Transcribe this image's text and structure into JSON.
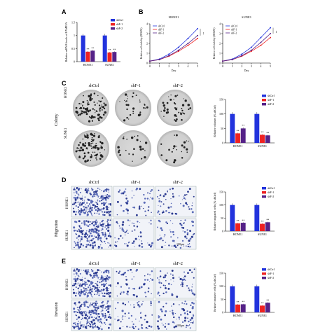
{
  "panels": {
    "A": "A",
    "B": "B",
    "C": "C",
    "D": "D",
    "E": "E"
  },
  "groups": [
    "shCtrl",
    "shF-1",
    "shF-2"
  ],
  "cell_lines": [
    "HONE1",
    "SUNE1"
  ],
  "colors": {
    "shCtrl": "#2233dd",
    "shF-1": "#ee2222",
    "shF-2": "#552288"
  },
  "significance": "**",
  "side_labels": {
    "colony": "Colony",
    "migration": "Migration",
    "invasion": "Invasion"
  },
  "scale_bar": "100μm",
  "chart_data": [
    {
      "id": "A",
      "type": "bar",
      "ylabel": "Relative mRNA levels of FAM83A",
      "categories": [
        "HONE1",
        "SUNE1"
      ],
      "ylim": [
        0,
        1.5
      ],
      "yticks": [
        0.0,
        0.5,
        1.0,
        1.5
      ],
      "series": [
        {
          "name": "shCtrl",
          "values": [
            1.0,
            1.0
          ]
        },
        {
          "name": "shF-1",
          "values": [
            0.38,
            0.35
          ]
        },
        {
          "name": "shF-2",
          "values": [
            0.42,
            0.37
          ]
        }
      ]
    },
    {
      "id": "B1",
      "type": "line",
      "title": "HONE1",
      "xlabel": "Day",
      "ylabel": "Relative cell viability (OD450)",
      "x": [
        0,
        1,
        2,
        3,
        4,
        5
      ],
      "xlim": [
        0,
        5
      ],
      "ylim": [
        0,
        4
      ],
      "yticks": [
        0,
        1,
        2,
        3,
        4
      ],
      "series": [
        {
          "name": "shCtrl",
          "values": [
            0.2,
            0.4,
            0.9,
            1.6,
            2.5,
            3.5
          ]
        },
        {
          "name": "shF-1",
          "values": [
            0.2,
            0.35,
            0.7,
            1.2,
            1.8,
            2.5
          ]
        },
        {
          "name": "shF-2",
          "values": [
            0.2,
            0.35,
            0.75,
            1.3,
            2.0,
            2.8
          ]
        }
      ]
    },
    {
      "id": "B2",
      "type": "line",
      "title": "SUNE1",
      "xlabel": "Day",
      "ylabel": "Relative cell viability (OD450)",
      "x": [
        0,
        1,
        2,
        3,
        4,
        5
      ],
      "xlim": [
        0,
        5
      ],
      "ylim": [
        0,
        4
      ],
      "yticks": [
        0,
        1,
        2,
        3,
        4
      ],
      "series": [
        {
          "name": "shCtrl",
          "values": [
            0.2,
            0.4,
            0.9,
            1.6,
            2.6,
            3.6
          ]
        },
        {
          "name": "shF-1",
          "values": [
            0.2,
            0.35,
            0.7,
            1.2,
            1.8,
            2.6
          ]
        },
        {
          "name": "shF-2",
          "values": [
            0.2,
            0.35,
            0.75,
            1.3,
            2.1,
            3.0
          ]
        }
      ]
    },
    {
      "id": "C",
      "type": "bar",
      "ylabel": "Relative colonies (% shCtrl)",
      "categories": [
        "HONE1",
        "SUNE1"
      ],
      "ylim": [
        0,
        150
      ],
      "yticks": [
        0,
        50,
        100,
        150
      ],
      "series": [
        {
          "name": "shCtrl",
          "values": [
            100,
            100
          ]
        },
        {
          "name": "shF-1",
          "values": [
            33,
            28
          ]
        },
        {
          "name": "shF-2",
          "values": [
            50,
            26
          ]
        }
      ]
    },
    {
      "id": "D",
      "type": "bar",
      "ylabel": "Relative migrated cells (% shCtrl)",
      "categories": [
        "HONE1",
        "SUNE1"
      ],
      "ylim": [
        0,
        150
      ],
      "yticks": [
        0,
        50,
        100,
        150
      ],
      "series": [
        {
          "name": "shCtrl",
          "values": [
            100,
            100
          ]
        },
        {
          "name": "shF-1",
          "values": [
            30,
            28
          ]
        },
        {
          "name": "shF-2",
          "values": [
            32,
            34
          ]
        }
      ]
    },
    {
      "id": "E",
      "type": "bar",
      "ylabel": "Relative invasive cells (% shCtrl)",
      "categories": [
        "HONE1",
        "SUNE1"
      ],
      "ylim": [
        0,
        150
      ],
      "yticks": [
        0,
        50,
        100,
        150
      ],
      "series": [
        {
          "name": "shCtrl",
          "values": [
            100,
            100
          ]
        },
        {
          "name": "shF-1",
          "values": [
            30,
            26
          ]
        },
        {
          "name": "shF-2",
          "values": [
            31,
            37
          ]
        }
      ]
    }
  ]
}
